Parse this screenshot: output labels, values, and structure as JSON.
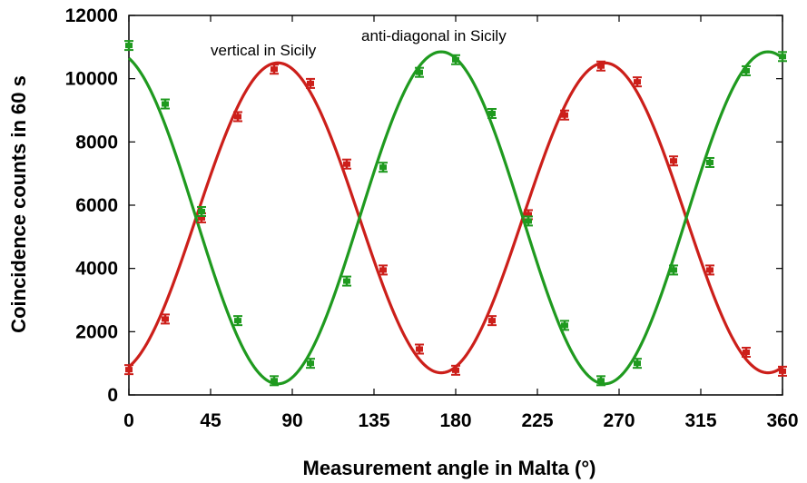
{
  "chart_data": {
    "type": "scatter",
    "xlabel": "Measurement angle in Malta (°)",
    "ylabel": "Coincidence counts in 60 s",
    "xlim": [
      0,
      360
    ],
    "ylim": [
      0,
      12000
    ],
    "xticks": [
      0,
      45,
      90,
      135,
      180,
      225,
      270,
      315,
      360
    ],
    "yticks": [
      0,
      2000,
      4000,
      6000,
      8000,
      10000,
      12000
    ],
    "grid": false,
    "annotations": [
      "vertical in Sicily",
      "anti-diagonal in Sicily"
    ],
    "series": [
      {
        "name": "vertical in Sicily",
        "color": "#cc1f1a",
        "x": [
          0,
          20,
          40,
          60,
          80,
          100,
          120,
          140,
          160,
          180,
          200,
          220,
          240,
          260,
          280,
          300,
          320,
          340,
          360
        ],
        "y": [
          800,
          2400,
          5600,
          8800,
          10300,
          9850,
          7300,
          3950,
          1450,
          780,
          2350,
          5700,
          8850,
          10400,
          9900,
          7400,
          3950,
          1350,
          750
        ],
        "fit": {
          "mean": 5600,
          "amplitude": 4900,
          "peak_deg": 82
        }
      },
      {
        "name": "anti-diagonal in Sicily",
        "color": "#1f9a1f",
        "x": [
          0,
          20,
          40,
          60,
          80,
          100,
          120,
          140,
          160,
          180,
          200,
          220,
          240,
          260,
          280,
          300,
          320,
          340,
          360
        ],
        "y": [
          11050,
          9200,
          5800,
          2350,
          450,
          1000,
          3600,
          7200,
          10200,
          10600,
          8900,
          5500,
          2200,
          450,
          1000,
          3950,
          7350,
          10250,
          10700
        ],
        "fit": {
          "mean": 5600,
          "amplitude": 5250,
          "peak_deg": 172
        }
      }
    ]
  }
}
